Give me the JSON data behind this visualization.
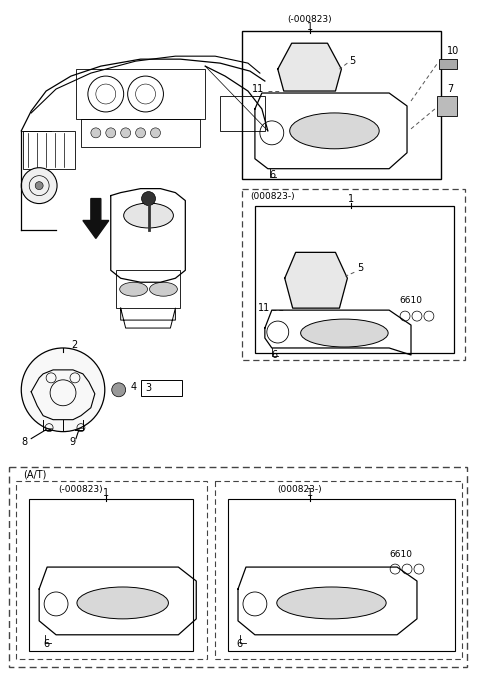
{
  "bg_color": "#ffffff",
  "line_color": "#000000",
  "dashed_color": "#555555",
  "fig_width": 4.8,
  "fig_height": 6.82,
  "labels": {
    "mt_top_label": "(-000823)",
    "mt_mid_label": "(000823-)",
    "at_outer_label": "(A/T)",
    "at_left_label": "(-000823)",
    "at_right_label": "(000823-)"
  }
}
